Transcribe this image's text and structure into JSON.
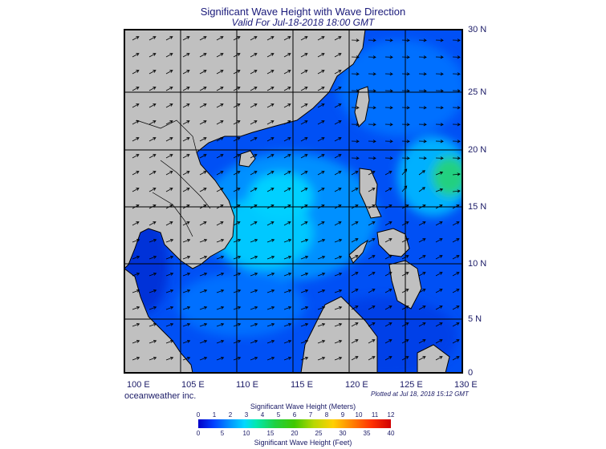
{
  "title": "Significant Wave Height with Wave Direction",
  "subtitle": "Valid For Jul-18-2018 18:00 GMT",
  "company": "oceanweather inc.",
  "plotted": "Plotted at Jul 18, 2018 15:12 GMT",
  "lat_labels": [
    "30 N",
    "25 N",
    "20 N",
    "15 N",
    "10 N",
    "5 N",
    "0"
  ],
  "lon_labels": [
    "100 E",
    "105 E",
    "110 E",
    "115 E",
    "120 E",
    "125 E",
    "130 E"
  ],
  "colorbar": {
    "title_meters": "Significant Wave Height (Meters)",
    "title_feet": "Significant Wave Height (Feet)",
    "meters_ticks": [
      "0",
      "1",
      "2",
      "3",
      "4",
      "5",
      "6",
      "7",
      "8",
      "9",
      "10",
      "11",
      "12"
    ],
    "feet_ticks": [
      "0",
      "5",
      "10",
      "15",
      "20",
      "25",
      "30",
      "35",
      "40"
    ]
  },
  "colors": {
    "land": "#c0c0c0",
    "deep_blue": "#0028e6",
    "mid_blue": "#0064ff",
    "light_blue": "#00a0ff",
    "cyan": "#00e0ff",
    "green": "#20d060",
    "text": "#1a1a66"
  },
  "map_extent": {
    "lon_min": 100,
    "lon_max": 130,
    "lat_min": 0,
    "lat_max": 30
  }
}
